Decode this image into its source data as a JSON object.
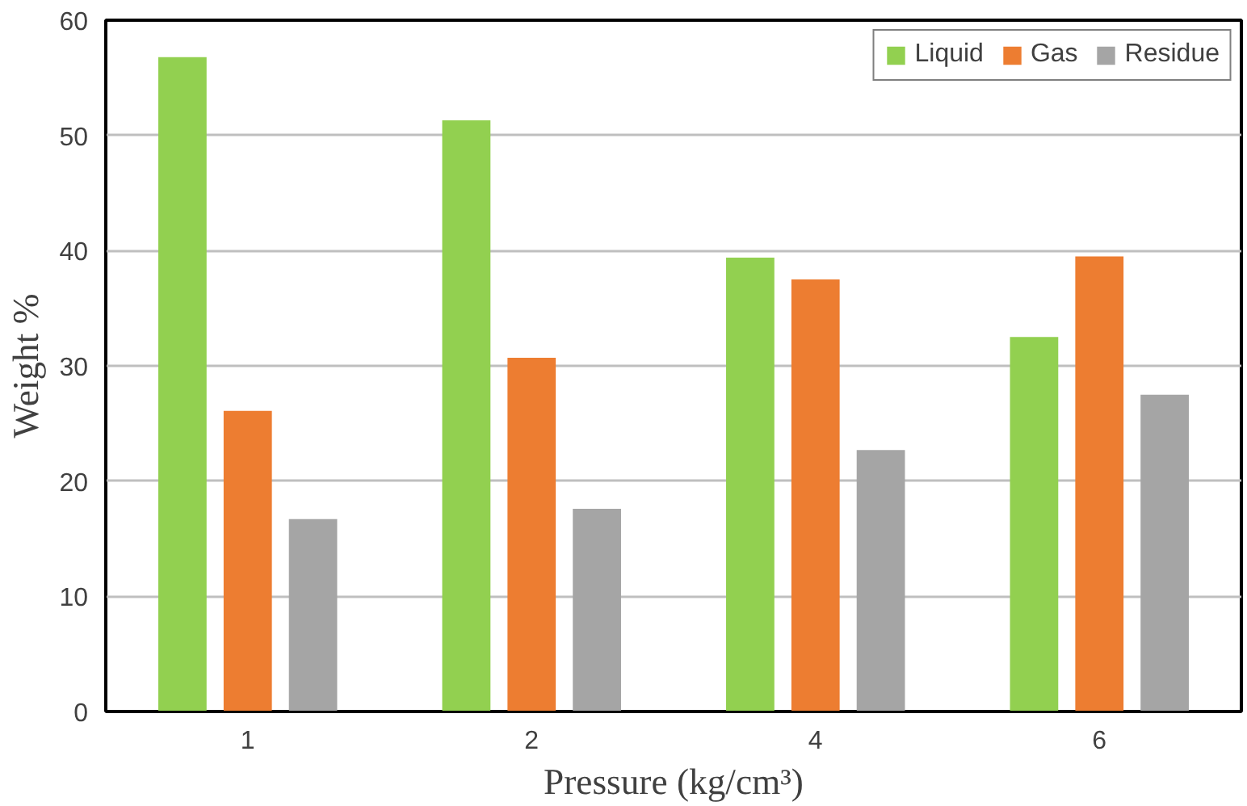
{
  "chart_data": {
    "type": "bar",
    "xlabel": "Pressure (kg/cm³)",
    "ylabel": "Weight %",
    "categories": [
      "1",
      "2",
      "4",
      "6"
    ],
    "series": [
      {
        "name": "Liquid",
        "color": "#92d050",
        "values": [
          56.8,
          51.3,
          39.4,
          32.5
        ]
      },
      {
        "name": "Gas",
        "color": "#ed7d31",
        "values": [
          26.1,
          30.7,
          37.5,
          39.5
        ]
      },
      {
        "name": "Residue",
        "color": "#a5a5a5",
        "values": [
          16.7,
          17.6,
          22.7,
          27.5
        ]
      }
    ],
    "ylim": [
      0,
      60
    ],
    "yticks": [
      0,
      10,
      20,
      30,
      40,
      50,
      60
    ],
    "grid": "y",
    "legend": "top right"
  }
}
